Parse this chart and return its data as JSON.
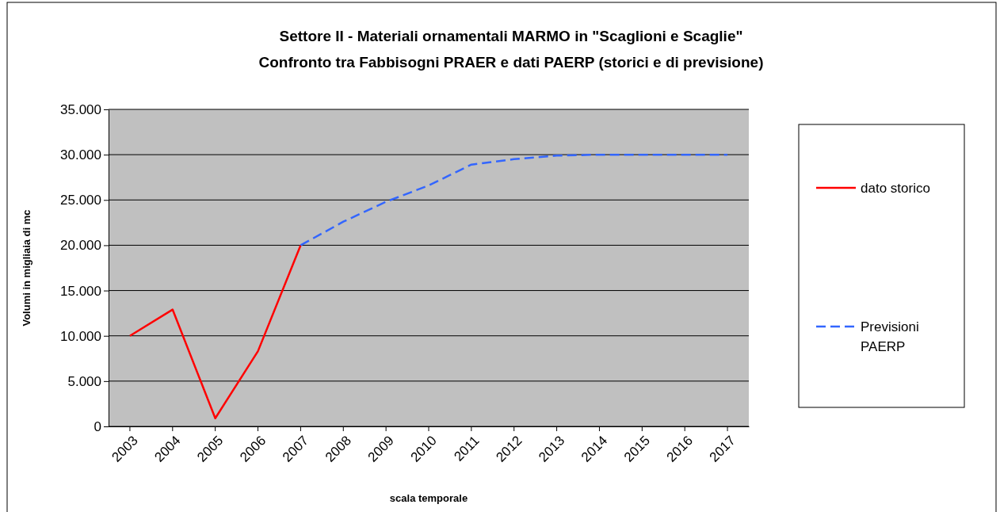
{
  "chart_data": {
    "type": "line",
    "title": "Settore II - Materiali ornamentali MARMO in \"Scaglioni e Scaglie\"",
    "subtitle": "Confronto tra Fabbisogni PRAER e dati PAERP (storici e di previsione)",
    "xlabel": "scala temporale",
    "ylabel": "Volumi in migliaia di mc",
    "categories": [
      "2003",
      "2004",
      "2005",
      "2006",
      "2007",
      "2008",
      "2009",
      "2010",
      "2011",
      "2012",
      "2013",
      "2014",
      "2015",
      "2016",
      "2017"
    ],
    "series": [
      {
        "name": "dato storico",
        "color": "#ff0000",
        "line_style": "solid",
        "values": [
          10000,
          12900,
          900,
          8300,
          20000,
          null,
          null,
          null,
          null,
          null,
          null,
          null,
          null,
          null,
          null
        ]
      },
      {
        "name": "Previsioni PAERP",
        "color": "#3366ff",
        "line_style": "dashed",
        "values": [
          null,
          null,
          null,
          null,
          20000,
          22600,
          24800,
          26600,
          28900,
          29500,
          29900,
          30000,
          30000,
          30000,
          30000
        ]
      }
    ],
    "ylim": [
      0,
      35000
    ],
    "yticks": [
      0,
      {
        "value": 5000,
        "label": "5.000"
      },
      {
        "value": 10000,
        "label": "10.000"
      },
      {
        "value": 15000,
        "label": "15.000"
      },
      {
        "value": 20000,
        "label": "20.000"
      },
      {
        "value": 25000,
        "label": "25.000"
      },
      {
        "value": 30000,
        "label": "30.000"
      },
      {
        "value": 35000,
        "label": "35.000"
      }
    ],
    "grid": "y",
    "legend": "right",
    "marker": "none"
  }
}
